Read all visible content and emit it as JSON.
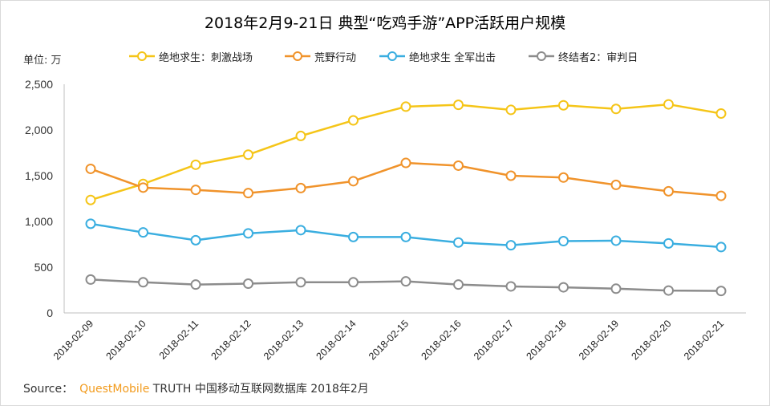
{
  "chart_data": {
    "type": "line",
    "title": "2018年2月9-21日 典型“吃鸡手游”APP活跃用户规模",
    "ylabel": "单位: 万",
    "ylim": [
      0,
      2500
    ],
    "yticks": [
      0,
      500,
      1000,
      1500,
      2000,
      2500
    ],
    "ytick_labels": [
      "0",
      "500",
      "1,000",
      "1,500",
      "2,000",
      "2,500"
    ],
    "legend_position": "top",
    "grid": false,
    "categories": [
      "2018-02-09",
      "2018-02-10",
      "2018-02-11",
      "2018-02-12",
      "2018-02-13",
      "2018-02-14",
      "2018-02-15",
      "2018-02-16",
      "2018-02-17",
      "2018-02-18",
      "2018-02-19",
      "2018-02-20",
      "2018-02-21"
    ],
    "series": [
      {
        "name": "绝地求生：刺激战场",
        "color": "#f5c518",
        "values": [
          1235,
          1410,
          1620,
          1730,
          1935,
          2105,
          2255,
          2275,
          2220,
          2270,
          2230,
          2280,
          2180
        ]
      },
      {
        "name": "荒野行动",
        "color": "#f0932b",
        "values": [
          1575,
          1370,
          1345,
          1310,
          1365,
          1440,
          1640,
          1610,
          1500,
          1480,
          1400,
          1330,
          1280
        ]
      },
      {
        "name": "绝地求生 全军出击",
        "color": "#3aaee0",
        "values": [
          975,
          880,
          795,
          870,
          905,
          830,
          830,
          770,
          740,
          785,
          790,
          760,
          720
        ]
      },
      {
        "name": "终结者2：审判日",
        "color": "#8c8c8c",
        "values": [
          365,
          335,
          310,
          320,
          335,
          335,
          345,
          310,
          290,
          280,
          265,
          245,
          240
        ]
      }
    ]
  },
  "source": {
    "prefix": "Source：",
    "brand": "QuestMobile",
    "text": "TRUTH 中国移动互联网数据库 2018年2月"
  }
}
